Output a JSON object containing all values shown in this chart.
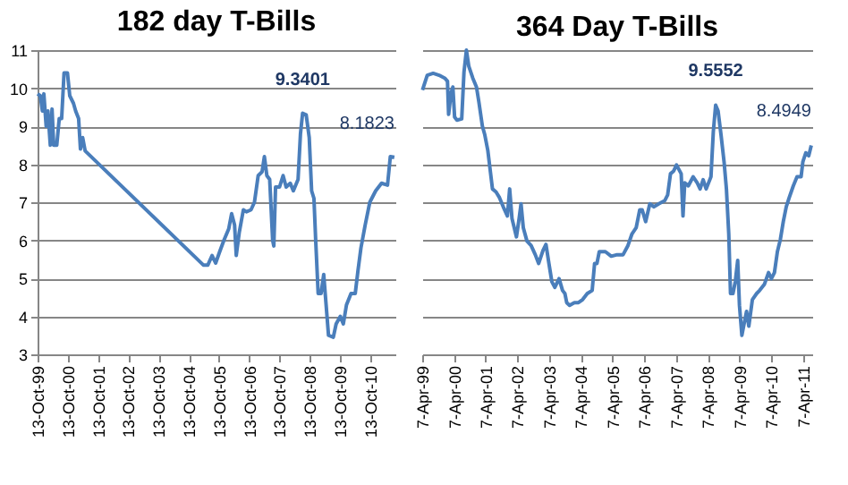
{
  "chart_data": [
    {
      "type": "line",
      "title": "182 day T-Bills",
      "ylim": [
        3,
        11
      ],
      "yticks": [
        3,
        4,
        5,
        6,
        7,
        8,
        9,
        10,
        11
      ],
      "grid": "y",
      "xlim": [
        "1999-10-13",
        "2011-08-15"
      ],
      "xticks": [
        {
          "value": "1999-10-13",
          "label": "13-Oct-99"
        },
        {
          "value": "2000-10-13",
          "label": "13-Oct-00"
        },
        {
          "value": "2001-10-13",
          "label": "13-Oct-01"
        },
        {
          "value": "2002-10-13",
          "label": "13-Oct-02"
        },
        {
          "value": "2003-10-13",
          "label": "13-Oct-03"
        },
        {
          "value": "2004-10-13",
          "label": "13-Oct-04"
        },
        {
          "value": "2005-10-13",
          "label": "13-Oct-05"
        },
        {
          "value": "2006-10-13",
          "label": "13-Oct-06"
        },
        {
          "value": "2007-10-13",
          "label": "13-Oct-07"
        },
        {
          "value": "2008-10-13",
          "label": "13-Oct-08"
        },
        {
          "value": "2009-10-13",
          "label": "13-Oct-09"
        },
        {
          "value": "2010-10-13",
          "label": "13-Oct-10"
        }
      ],
      "x": [
        "1999-10-13",
        "1999-11-15",
        "1999-12-10",
        "1999-12-28",
        "2000-01-25",
        "2000-02-15",
        "2000-03-15",
        "2000-04-05",
        "2000-04-25",
        "2000-06-01",
        "2000-07-01",
        "2000-07-30",
        "2000-08-28",
        "2000-10-08",
        "2000-11-05",
        "2000-12-20",
        "2001-01-15",
        "2001-02-20",
        "2001-03-14",
        "2001-04-10",
        "2001-05-10",
        "2005-04-07",
        "2005-06-01",
        "2005-07-22",
        "2005-09-03",
        "2005-10-22",
        "2005-12-12",
        "2006-02-08",
        "2006-03-15",
        "2006-04-20",
        "2006-05-10",
        "2006-06-15",
        "2006-08-04",
        "2006-09-10",
        "2006-11-04",
        "2006-12-16",
        "2007-01-30",
        "2007-03-18",
        "2007-04-15",
        "2007-05-15",
        "2007-06-18",
        "2007-07-24",
        "2007-08-07",
        "2007-08-28",
        "2007-10-15",
        "2007-11-27",
        "2008-01-03",
        "2008-02-22",
        "2008-03-30",
        "2008-05-26",
        "2008-06-24",
        "2008-07-20",
        "2008-09-01",
        "2008-10-08",
        "2008-11-06",
        "2008-12-04",
        "2008-12-25",
        "2009-01-24",
        "2009-02-28",
        "2009-04-01",
        "2009-04-30",
        "2009-05-29",
        "2009-07-26",
        "2009-08-29",
        "2009-10-19",
        "2009-11-24",
        "2010-01-01",
        "2010-02-25",
        "2010-04-17",
        "2010-05-20",
        "2010-06-25",
        "2010-08-15",
        "2010-10-10",
        "2010-12-20",
        "2011-03-01",
        "2011-05-12",
        "2011-06-15",
        "2011-08-03"
      ],
      "series": [
        {
          "color": "#4a7ebb",
          "values": [
            9.85,
            9.8,
            9.4,
            9.85,
            9.0,
            9.4,
            8.5,
            9.45,
            8.5,
            8.5,
            9.2,
            9.2,
            10.4,
            10.4,
            9.8,
            9.6,
            9.4,
            9.2,
            8.4,
            8.7,
            8.35,
            5.35,
            5.35,
            5.6,
            5.4,
            5.7,
            6.0,
            6.3,
            6.7,
            6.4,
            5.6,
            6.2,
            6.8,
            6.75,
            6.8,
            7.0,
            7.7,
            7.8,
            8.2,
            7.7,
            7.6,
            6.0,
            5.85,
            7.4,
            7.4,
            7.7,
            7.4,
            7.5,
            7.3,
            7.6,
            8.8,
            9.3401,
            9.3,
            8.7,
            7.3,
            7.1,
            6.0,
            4.6,
            4.6,
            5.1,
            4.3,
            3.5,
            3.45,
            3.8,
            4.0,
            3.8,
            4.3,
            4.6,
            4.6,
            5.2,
            5.8,
            6.4,
            7.0,
            7.3,
            7.5,
            7.45,
            8.2,
            8.1823
          ]
        }
      ],
      "annotations": [
        {
          "text": "9.3401",
          "x": "2008-07-20",
          "y": 9.3401
        },
        {
          "text": "8.1823",
          "x": "2011-08-03",
          "y": 8.1823
        }
      ]
    },
    {
      "type": "line",
      "title": "364 Day T-Bills",
      "ylim": [
        3,
        11
      ],
      "yticks": [
        3,
        4,
        5,
        6,
        7,
        8,
        9,
        10,
        11
      ],
      "grid": "y",
      "tick_labels": "x",
      "xlim": [
        "1999-04-07",
        "2011-07-24"
      ],
      "xticks": [
        {
          "value": "1999-04-07",
          "label": "7-Apr-99"
        },
        {
          "value": "2000-04-07",
          "label": "7-Apr-00"
        },
        {
          "value": "2001-04-07",
          "label": "7-Apr-01"
        },
        {
          "value": "2002-04-07",
          "label": "7-Apr-02"
        },
        {
          "value": "2003-04-07",
          "label": "7-Apr-03"
        },
        {
          "value": "2004-04-07",
          "label": "7-Apr-04"
        },
        {
          "value": "2005-04-07",
          "label": "7-Apr-05"
        },
        {
          "value": "2006-04-07",
          "label": "7-Apr-06"
        },
        {
          "value": "2007-04-07",
          "label": "7-Apr-07"
        },
        {
          "value": "2008-04-07",
          "label": "7-Apr-08"
        },
        {
          "value": "2009-04-07",
          "label": "7-Apr-09"
        },
        {
          "value": "2010-04-07",
          "label": "7-Apr-10"
        },
        {
          "value": "2011-04-07",
          "label": "7-Apr-11"
        }
      ],
      "x": [
        "1999-04-10",
        "1999-06-04",
        "1999-08-11",
        "1999-10-18",
        "1999-12-25",
        "2000-01-23",
        "2000-02-05",
        "2000-03-04",
        "2000-03-25",
        "2000-04-14",
        "2000-05-11",
        "2000-07-05",
        "2000-07-31",
        "2000-08-28",
        "2000-09-24",
        "2000-11-10",
        "2000-12-22",
        "2001-01-19",
        "2001-02-28",
        "2001-03-28",
        "2001-05-01",
        "2001-06-24",
        "2001-08-04",
        "2001-09-13",
        "2001-10-26",
        "2001-12-13",
        "2002-01-08",
        "2002-02-04",
        "2002-03-27",
        "2002-04-27",
        "2002-05-19",
        "2002-06-14",
        "2002-07-26",
        "2002-09-12",
        "2002-10-30",
        "2002-12-08",
        "2003-01-27",
        "2003-03-02",
        "2003-04-05",
        "2003-05-09",
        "2003-06-12",
        "2003-07-31",
        "2003-09-09",
        "2003-10-06",
        "2003-10-27",
        "2003-11-29",
        "2004-01-23",
        "2004-03-10",
        "2004-04-27",
        "2004-06-20",
        "2004-08-15",
        "2004-09-12",
        "2004-10-09",
        "2004-11-05",
        "2005-01-14",
        "2005-03-23",
        "2005-05-29",
        "2005-08-06",
        "2005-10-01",
        "2005-11-17",
        "2006-01-04",
        "2006-02-14",
        "2006-03-14",
        "2006-04-23",
        "2006-06-10",
        "2006-07-27",
        "2006-09-21",
        "2006-11-28",
        "2007-01-01",
        "2007-02-03",
        "2007-03-11",
        "2007-04-13",
        "2007-06-06",
        "2007-06-27",
        "2007-07-17",
        "2007-08-27",
        "2007-10-22",
        "2007-12-08",
        "2008-01-10",
        "2008-02-14",
        "2008-03-20",
        "2008-05-14",
        "2008-06-10",
        "2008-07-07",
        "2008-08-04",
        "2008-09-07",
        "2008-10-12",
        "2008-11-08",
        "2008-12-05",
        "2008-12-25",
        "2009-01-22",
        "2009-02-18",
        "2009-03-18",
        "2009-04-07",
        "2009-05-05",
        "2009-05-25",
        "2009-06-28",
        "2009-07-24",
        "2009-09-03",
        "2009-10-22",
        "2009-11-25",
        "2010-01-19",
        "2010-03-08",
        "2010-04-10",
        "2010-05-15",
        "2010-06-18",
        "2010-07-22",
        "2010-08-25",
        "2010-09-28",
        "2010-11-01",
        "2010-12-18",
        "2011-01-30",
        "2011-03-18",
        "2011-04-07",
        "2011-05-11",
        "2011-06-14",
        "2011-07-13"
      ],
      "series": [
        {
          "color": "#4a7ebb",
          "values": [
            9.95,
            10.34,
            10.39,
            10.34,
            10.26,
            10.18,
            9.31,
            9.87,
            10.03,
            9.24,
            9.16,
            9.19,
            10.42,
            11.0,
            10.58,
            10.26,
            10.03,
            9.63,
            9.0,
            8.77,
            8.37,
            7.35,
            7.27,
            7.12,
            6.88,
            6.64,
            7.35,
            6.57,
            6.09,
            6.57,
            6.96,
            6.33,
            5.98,
            5.86,
            5.62,
            5.39,
            5.73,
            5.89,
            5.39,
            4.91,
            4.76,
            4.99,
            4.68,
            4.6,
            4.36,
            4.29,
            4.36,
            4.36,
            4.44,
            4.6,
            4.68,
            5.39,
            5.39,
            5.7,
            5.7,
            5.58,
            5.62,
            5.62,
            5.86,
            6.17,
            6.33,
            6.8,
            6.8,
            6.49,
            6.96,
            6.88,
            6.96,
            7.04,
            7.19,
            7.75,
            7.82,
            7.98,
            7.75,
            6.64,
            7.51,
            7.43,
            7.67,
            7.51,
            7.35,
            7.59,
            7.35,
            7.67,
            8.85,
            9.5552,
            9.4,
            8.77,
            8.06,
            7.35,
            6.17,
            4.6,
            4.6,
            4.91,
            5.47,
            4.29,
            3.5,
            3.74,
            4.13,
            3.74,
            4.44,
            4.6,
            4.68,
            4.84,
            5.15,
            4.99,
            5.15,
            5.7,
            6.02,
            6.49,
            6.88,
            7.12,
            7.43,
            7.67,
            7.67,
            8.06,
            8.3,
            8.22,
            8.4949
          ]
        }
      ],
      "annotations": [
        {
          "text": "9.5552",
          "x": "2008-07-07",
          "y": 9.5552
        },
        {
          "text": "8.4949",
          "x": "2011-07-13",
          "y": 8.4949
        }
      ]
    }
  ]
}
